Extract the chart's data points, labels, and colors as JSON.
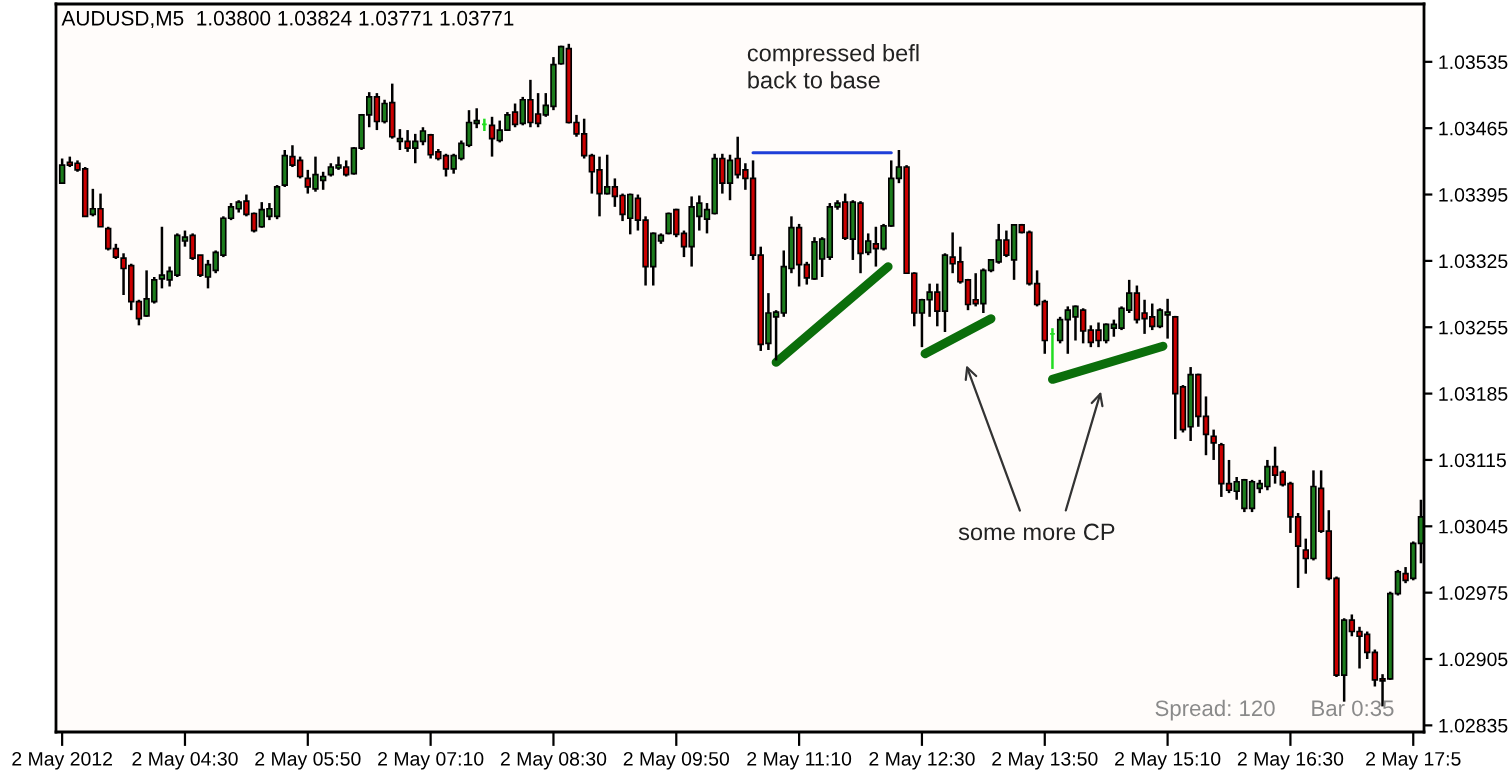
{
  "chart_data": {
    "type": "candlestick",
    "title": "AUDUSD,M5  1.03800 1.03824 1.03771 1.03771",
    "x": [
      "2012-05-02T03:10",
      "2012-05-02T03:15",
      "2012-05-02T03:20",
      "2012-05-02T03:25",
      "2012-05-02T03:30",
      "2012-05-02T03:35",
      "2012-05-02T03:40",
      "2012-05-02T03:45",
      "2012-05-02T03:50",
      "2012-05-02T03:55",
      "2012-05-02T04:00",
      "2012-05-02T04:05",
      "2012-05-02T04:10",
      "2012-05-02T04:15",
      "2012-05-02T04:20",
      "2012-05-02T04:25",
      "2012-05-02T04:30",
      "2012-05-02T04:35",
      "2012-05-02T04:40",
      "2012-05-02T04:45",
      "2012-05-02T04:50",
      "2012-05-02T04:55",
      "2012-05-02T05:00",
      "2012-05-02T05:05",
      "2012-05-02T05:10",
      "2012-05-02T05:15",
      "2012-05-02T05:20",
      "2012-05-02T05:25",
      "2012-05-02T05:30",
      "2012-05-02T05:35",
      "2012-05-02T05:40",
      "2012-05-02T05:45",
      "2012-05-02T05:50",
      "2012-05-02T05:55",
      "2012-05-02T06:00",
      "2012-05-02T06:05",
      "2012-05-02T06:10",
      "2012-05-02T06:15",
      "2012-05-02T06:20",
      "2012-05-02T06:25",
      "2012-05-02T06:30",
      "2012-05-02T06:35",
      "2012-05-02T06:40",
      "2012-05-02T06:45",
      "2012-05-02T06:50",
      "2012-05-02T06:55",
      "2012-05-02T07:00",
      "2012-05-02T07:05",
      "2012-05-02T07:10",
      "2012-05-02T07:15",
      "2012-05-02T07:20",
      "2012-05-02T07:25",
      "2012-05-02T07:30",
      "2012-05-02T07:35",
      "2012-05-02T07:40",
      "2012-05-02T07:45",
      "2012-05-02T07:50",
      "2012-05-02T07:55",
      "2012-05-02T08:00",
      "2012-05-02T08:05",
      "2012-05-02T08:10",
      "2012-05-02T08:15",
      "2012-05-02T08:20",
      "2012-05-02T08:25",
      "2012-05-02T08:30",
      "2012-05-02T08:35",
      "2012-05-02T08:40",
      "2012-05-02T08:45",
      "2012-05-02T08:50",
      "2012-05-02T08:55",
      "2012-05-02T09:00",
      "2012-05-02T09:05",
      "2012-05-02T09:10",
      "2012-05-02T09:15",
      "2012-05-02T09:20",
      "2012-05-02T09:25",
      "2012-05-02T09:30",
      "2012-05-02T09:35",
      "2012-05-02T09:40",
      "2012-05-02T09:45",
      "2012-05-02T09:50",
      "2012-05-02T09:55",
      "2012-05-02T10:00",
      "2012-05-02T10:05",
      "2012-05-02T10:10",
      "2012-05-02T10:15",
      "2012-05-02T10:20",
      "2012-05-02T10:25",
      "2012-05-02T10:30",
      "2012-05-02T10:35",
      "2012-05-02T10:40",
      "2012-05-02T10:45",
      "2012-05-02T10:50",
      "2012-05-02T10:55",
      "2012-05-02T11:00",
      "2012-05-02T11:05",
      "2012-05-02T11:10",
      "2012-05-02T11:15",
      "2012-05-02T11:20",
      "2012-05-02T11:25",
      "2012-05-02T11:30",
      "2012-05-02T11:35",
      "2012-05-02T11:40",
      "2012-05-02T11:45",
      "2012-05-02T11:50",
      "2012-05-02T11:55",
      "2012-05-02T12:00",
      "2012-05-02T12:05",
      "2012-05-02T12:10",
      "2012-05-02T12:15",
      "2012-05-02T12:20",
      "2012-05-02T12:25",
      "2012-05-02T12:30",
      "2012-05-02T12:35",
      "2012-05-02T12:40",
      "2012-05-02T12:45",
      "2012-05-02T12:50",
      "2012-05-02T12:55",
      "2012-05-02T13:00",
      "2012-05-02T13:05",
      "2012-05-02T13:10",
      "2012-05-02T13:15",
      "2012-05-02T13:20",
      "2012-05-02T13:25",
      "2012-05-02T13:30",
      "2012-05-02T13:35",
      "2012-05-02T13:40",
      "2012-05-02T13:45",
      "2012-05-02T13:50",
      "2012-05-02T13:55",
      "2012-05-02T14:00",
      "2012-05-02T14:05",
      "2012-05-02T14:10",
      "2012-05-02T14:15",
      "2012-05-02T14:20",
      "2012-05-02T14:25",
      "2012-05-02T14:30",
      "2012-05-02T14:35",
      "2012-05-02T14:40",
      "2012-05-02T14:45",
      "2012-05-02T14:50",
      "2012-05-02T14:55",
      "2012-05-02T15:00",
      "2012-05-02T15:05",
      "2012-05-02T15:10",
      "2012-05-02T15:15",
      "2012-05-02T15:20",
      "2012-05-02T15:25",
      "2012-05-02T15:30",
      "2012-05-02T15:35",
      "2012-05-02T15:40",
      "2012-05-02T15:45",
      "2012-05-02T15:50",
      "2012-05-02T15:55",
      "2012-05-02T16:00",
      "2012-05-02T16:05",
      "2012-05-02T16:10",
      "2012-05-02T16:15",
      "2012-05-02T16:20",
      "2012-05-02T16:25",
      "2012-05-02T16:30",
      "2012-05-02T16:35",
      "2012-05-02T16:40",
      "2012-05-02T16:45",
      "2012-05-02T16:50",
      "2012-05-02T16:55",
      "2012-05-02T17:00",
      "2012-05-02T17:05",
      "2012-05-02T17:10",
      "2012-05-02T17:15",
      "2012-05-02T17:20",
      "2012-05-02T17:25",
      "2012-05-02T17:30",
      "2012-05-02T17:35",
      "2012-05-02T17:40",
      "2012-05-02T17:45",
      "2012-05-02T17:50",
      "2012-05-02T17:55"
    ],
    "ohlc": [
      [
        1.03407,
        1.03433,
        1.03407,
        1.03426
      ],
      [
        1.03429,
        1.03435,
        1.03424,
        1.03426
      ],
      [
        1.03428,
        1.03431,
        1.03419,
        1.03421
      ],
      [
        1.03422,
        1.03424,
        1.03372,
        1.03372
      ],
      [
        1.03374,
        1.03401,
        1.03372,
        1.0338
      ],
      [
        1.0338,
        1.03396,
        1.03361,
        1.03361
      ],
      [
        1.03359,
        1.03361,
        1.03336,
        1.03338
      ],
      [
        1.03338,
        1.03343,
        1.03327,
        1.03329
      ],
      [
        1.03328,
        1.03333,
        1.03289,
        1.03317
      ],
      [
        1.0332,
        1.03322,
        1.03273,
        1.03282
      ],
      [
        1.03282,
        1.03284,
        1.03257,
        1.03264
      ],
      [
        1.03267,
        1.03315,
        1.03266,
        1.03285
      ],
      [
        1.03282,
        1.03308,
        1.0328,
        1.03305
      ],
      [
        1.03306,
        1.03361,
        1.03296,
        1.0331
      ],
      [
        1.03305,
        1.03319,
        1.03298,
        1.03314
      ],
      [
        1.0331,
        1.03354,
        1.03308,
        1.03352
      ],
      [
        1.03346,
        1.03357,
        1.0334,
        1.0335
      ],
      [
        1.03352,
        1.03354,
        1.03326,
        1.03328
      ],
      [
        1.03331,
        1.03331,
        1.03308,
        1.0331
      ],
      [
        1.03308,
        1.03326,
        1.03296,
        1.03321
      ],
      [
        1.03315,
        1.03336,
        1.03312,
        1.03334
      ],
      [
        1.03331,
        1.03372,
        1.03329,
        1.0337
      ],
      [
        1.0337,
        1.03386,
        1.03368,
        1.03382
      ],
      [
        1.0338,
        1.03389,
        1.03376,
        1.03387
      ],
      [
        1.03388,
        1.03395,
        1.03372,
        1.03374
      ],
      [
        1.03375,
        1.03376,
        1.03355,
        1.03357
      ],
      [
        1.03361,
        1.03387,
        1.0336,
        1.03379
      ],
      [
        1.03372,
        1.03386,
        1.03368,
        1.0338
      ],
      [
        1.03372,
        1.03405,
        1.03369,
        1.03403
      ],
      [
        1.03405,
        1.03442,
        1.03403,
        1.03436
      ],
      [
        1.03435,
        1.03447,
        1.03424,
        1.03426
      ],
      [
        1.03431,
        1.03435,
        1.03412,
        1.03414
      ],
      [
        1.03412,
        1.03421,
        1.03396,
        1.03403
      ],
      [
        1.03401,
        1.03435,
        1.03398,
        1.03416
      ],
      [
        1.0341,
        1.03419,
        1.034,
        1.03414
      ],
      [
        1.03416,
        1.03428,
        1.03414,
        1.03424
      ],
      [
        1.03423,
        1.03435,
        1.03421,
        1.03426
      ],
      [
        1.03424,
        1.03431,
        1.03414,
        1.03416
      ],
      [
        1.03417,
        1.03445,
        1.03416,
        1.03444
      ],
      [
        1.03444,
        1.0348,
        1.03442,
        1.03479
      ],
      [
        1.03479,
        1.03503,
        1.03466,
        1.03498
      ],
      [
        1.03498,
        1.03502,
        1.03463,
        1.03472
      ],
      [
        1.03472,
        1.03495,
        1.0347,
        1.03491
      ],
      [
        1.03492,
        1.03512,
        1.03454,
        1.03456
      ],
      [
        1.03451,
        1.03464,
        1.03442,
        1.03454
      ],
      [
        1.03451,
        1.03463,
        1.0344,
        1.03444
      ],
      [
        1.03444,
        1.03459,
        1.03428,
        1.03451
      ],
      [
        1.03451,
        1.03466,
        1.03447,
        1.03462
      ],
      [
        1.03458,
        1.03459,
        1.03433,
        1.03437
      ],
      [
        1.0344,
        1.03443,
        1.03431,
        1.03433
      ],
      [
        1.03436,
        1.03438,
        1.03414,
        1.03422
      ],
      [
        1.03422,
        1.03438,
        1.03417,
        1.03436
      ],
      [
        1.03433,
        1.03452,
        1.03431,
        1.03449
      ],
      [
        1.03447,
        1.03484,
        1.03445,
        1.03471
      ],
      [
        1.0347,
        1.03486,
        1.03465,
        1.03473
      ],
      [
        1.03469,
        1.03475,
        1.03462,
        1.03469
      ],
      [
        1.03468,
        1.03477,
        1.03435,
        1.03454
      ],
      [
        1.03452,
        1.03473,
        1.0345,
        1.03463
      ],
      [
        1.03463,
        1.03482,
        1.03463,
        1.03479
      ],
      [
        1.03482,
        1.03491,
        1.03466,
        1.03469
      ],
      [
        1.0347,
        1.03498,
        1.03468,
        1.03495
      ],
      [
        1.03495,
        1.03516,
        1.03466,
        1.03471
      ],
      [
        1.0348,
        1.03502,
        1.03466,
        1.0347
      ],
      [
        1.03479,
        1.03502,
        1.03477,
        1.03489
      ],
      [
        1.03488,
        1.0354,
        1.03484,
        1.03532
      ],
      [
        1.03533,
        1.03552,
        1.03532,
        1.03551
      ],
      [
        1.03549,
        1.03554,
        1.0347,
        1.03471
      ],
      [
        1.03471,
        1.03479,
        1.03456,
        1.03459
      ],
      [
        1.03459,
        1.03475,
        1.03433,
        1.03436
      ],
      [
        1.03436,
        1.03438,
        1.03396,
        1.03419
      ],
      [
        1.03421,
        1.03435,
        1.03372,
        1.03396
      ],
      [
        1.03396,
        1.03437,
        1.03395,
        1.03403
      ],
      [
        1.03403,
        1.03412,
        1.03382,
        1.03393
      ],
      [
        1.03394,
        1.03396,
        1.03367,
        1.03374
      ],
      [
        1.0337,
        1.03396,
        1.03353,
        1.03395
      ],
      [
        1.03391,
        1.03395,
        1.03357,
        1.03368
      ],
      [
        1.03368,
        1.03372,
        1.03299,
        1.03319
      ],
      [
        1.03319,
        1.03355,
        1.03299,
        1.03354
      ],
      [
        1.03346,
        1.03354,
        1.03343,
        1.03352
      ],
      [
        1.03354,
        1.03376,
        1.03353,
        1.03375
      ],
      [
        1.03379,
        1.0338,
        1.0335,
        1.03353
      ],
      [
        1.03354,
        1.03357,
        1.03329,
        1.0334
      ],
      [
        1.0334,
        1.03393,
        1.03319,
        1.03382
      ],
      [
        1.03372,
        1.03394,
        1.03357,
        1.03386
      ],
      [
        1.03369,
        1.03386,
        1.03354,
        1.03379
      ],
      [
        1.03375,
        1.03438,
        1.03374,
        1.03433
      ],
      [
        1.03433,
        1.03438,
        1.03396,
        1.03407
      ],
      [
        1.03407,
        1.03437,
        1.03389,
        1.03431
      ],
      [
        1.03433,
        1.03456,
        1.03412,
        1.03416
      ],
      [
        1.03421,
        1.03428,
        1.034,
        1.03412
      ],
      [
        1.03412,
        1.03431,
        1.03326,
        1.03331
      ],
      [
        1.03331,
        1.0334,
        1.0323,
        1.03237
      ],
      [
        1.03238,
        1.03291,
        1.03231,
        1.0327
      ],
      [
        1.03266,
        1.03273,
        1.0322,
        1.03271
      ],
      [
        1.0327,
        1.03336,
        1.03266,
        1.03319
      ],
      [
        1.03317,
        1.03372,
        1.03312,
        1.0336
      ],
      [
        1.0336,
        1.03364,
        1.03298,
        1.03321
      ],
      [
        1.03321,
        1.03324,
        1.033,
        1.03307
      ],
      [
        1.03306,
        1.0335,
        1.03305,
        1.03345
      ],
      [
        1.03327,
        1.0335,
        1.03308,
        1.03348
      ],
      [
        1.03329,
        1.03386,
        1.03326,
        1.03382
      ],
      [
        1.03382,
        1.03389,
        1.03379,
        1.03386
      ],
      [
        1.03387,
        1.03396,
        1.03347,
        1.03349
      ],
      [
        1.03348,
        1.03389,
        1.03326,
        1.03387
      ],
      [
        1.03386,
        1.03388,
        1.03312,
        1.03333
      ],
      [
        1.03334,
        1.03354,
        1.03331,
        1.03346
      ],
      [
        1.03343,
        1.03361,
        1.03319,
        1.03338
      ],
      [
        1.03338,
        1.03364,
        1.03336,
        1.03362
      ],
      [
        1.03362,
        1.03431,
        1.03361,
        1.03412
      ],
      [
        1.03412,
        1.03442,
        1.03407,
        1.03424
      ],
      [
        1.03424,
        1.03426,
        1.03312,
        1.03312
      ],
      [
        1.03312,
        1.03313,
        1.03256,
        1.0327
      ],
      [
        1.0327,
        1.03285,
        1.03234,
        1.03284
      ],
      [
        1.03284,
        1.03301,
        1.03266,
        1.03292
      ],
      [
        1.03292,
        1.03301,
        1.03256,
        1.03272
      ],
      [
        1.03272,
        1.03333,
        1.0325,
        1.03331
      ],
      [
        1.03329,
        1.03355,
        1.03312,
        1.03322
      ],
      [
        1.03324,
        1.0334,
        1.03301,
        1.03303
      ],
      [
        1.03305,
        1.03306,
        1.03273,
        1.03279
      ],
      [
        1.03284,
        1.03312,
        1.03277,
        1.0328
      ],
      [
        1.0328,
        1.03317,
        1.0327,
        1.03315
      ],
      [
        1.03315,
        1.03327,
        1.03313,
        1.03326
      ],
      [
        1.03324,
        1.03364,
        1.03322,
        1.03347
      ],
      [
        1.03347,
        1.03357,
        1.03329,
        1.03331
      ],
      [
        1.03326,
        1.03363,
        1.03305,
        1.03363
      ],
      [
        1.03363,
        1.03364,
        1.03354,
        1.03355
      ],
      [
        1.03355,
        1.03357,
        1.03299,
        1.03301
      ],
      [
        1.03301,
        1.03315,
        1.03277,
        1.03279
      ],
      [
        1.03282,
        1.03284,
        1.03227,
        1.03241
      ],
      [
        1.03248,
        1.03254,
        1.03211,
        1.03248
      ],
      [
        1.03241,
        1.03266,
        1.03238,
        1.03263
      ],
      [
        1.03263,
        1.03277,
        1.03227,
        1.03273
      ],
      [
        1.03266,
        1.03278,
        1.03241,
        1.03277
      ],
      [
        1.03273,
        1.03275,
        1.03238,
        1.03251
      ],
      [
        1.03252,
        1.03257,
        1.03234,
        1.03239
      ],
      [
        1.03252,
        1.0326,
        1.03234,
        1.03241
      ],
      [
        1.03241,
        1.03259,
        1.03238,
        1.03258
      ],
      [
        1.03254,
        1.03263,
        1.03245,
        1.03258
      ],
      [
        1.03254,
        1.03277,
        1.03252,
        1.03275
      ],
      [
        1.03273,
        1.03305,
        1.0327,
        1.03291
      ],
      [
        1.03291,
        1.03299,
        1.03259,
        1.03263
      ],
      [
        1.0327,
        1.03284,
        1.03248,
        1.03264
      ],
      [
        1.03266,
        1.0328,
        1.03252,
        1.03256
      ],
      [
        1.03256,
        1.03275,
        1.03254,
        1.03273
      ],
      [
        1.03268,
        1.03285,
        1.03243,
        1.03271
      ],
      [
        1.03266,
        1.03267,
        1.03137,
        1.03185
      ],
      [
        1.03192,
        1.03194,
        1.03144,
        1.03147
      ],
      [
        1.0315,
        1.03213,
        1.03135,
        1.03205
      ],
      [
        1.03205,
        1.03206,
        1.0315,
        1.03161
      ],
      [
        1.03161,
        1.03182,
        1.0312,
        1.03142
      ],
      [
        1.0314,
        1.03147,
        1.03115,
        1.03133
      ],
      [
        1.03131,
        1.03133,
        1.03076,
        1.0309
      ],
      [
        1.0309,
        1.03115,
        1.0308,
        1.03083
      ],
      [
        1.03082,
        1.03097,
        1.03073,
        1.03092
      ],
      [
        1.03064,
        1.03095,
        1.0306,
        1.03094
      ],
      [
        1.03064,
        1.03094,
        1.0306,
        1.03092
      ],
      [
        1.03085,
        1.03094,
        1.0308,
        1.0309
      ],
      [
        1.03087,
        1.03115,
        1.03083,
        1.03108
      ],
      [
        1.03108,
        1.03129,
        1.0309,
        1.03099
      ],
      [
        1.03102,
        1.03104,
        1.03087,
        1.03089
      ],
      [
        1.0309,
        1.03092,
        1.03038,
        1.03055
      ],
      [
        1.03055,
        1.03059,
        1.0298,
        1.03024
      ],
      [
        1.0302,
        1.03032,
        1.02995,
        1.03011
      ],
      [
        1.03011,
        1.03104,
        1.03009,
        1.03087
      ],
      [
        1.03085,
        1.03104,
        1.03038,
        1.0304
      ],
      [
        1.0304,
        1.03062,
        1.02988,
        1.0299
      ],
      [
        1.0299,
        1.02992,
        1.02886,
        1.02888
      ],
      [
        1.02888,
        1.02948,
        1.0286,
        1.02946
      ],
      [
        1.02946,
        1.02952,
        1.02929,
        1.02934
      ],
      [
        1.02934,
        1.02939,
        1.02895,
        1.02929
      ],
      [
        1.02931,
        1.02934,
        1.02905,
        1.02912
      ],
      [
        1.02912,
        1.02915,
        1.02876,
        1.02883
      ],
      [
        1.02884,
        1.02889,
        1.02855,
        1.02882
      ],
      [
        1.02884,
        1.02976,
        1.02883,
        1.02974
      ],
      [
        1.02974,
        1.02999,
        1.02972,
        1.02997
      ],
      [
        1.02995,
        1.03002,
        1.02985,
        1.02988
      ],
      [
        1.0299,
        1.03029,
        1.02988,
        1.03027
      ],
      [
        1.03027,
        1.03073,
        1.03006,
        1.03055
      ]
    ],
    "series": [
      {
        "type": "line",
        "color": "#1f3fd8",
        "x": [
          "2012-05-02T10:40",
          "2012-05-02T12:10"
        ],
        "values": [
          1.03439,
          1.03439
        ]
      },
      {
        "type": "line",
        "color": "#0b6e0b",
        "x": [
          "2012-05-02T10:55",
          "2012-05-02T12:08"
        ],
        "values": [
          1.03218,
          1.03319
        ]
      },
      {
        "type": "line",
        "color": "#0b6e0b",
        "x": [
          "2012-05-02T12:32",
          "2012-05-02T13:15"
        ],
        "values": [
          1.03227,
          1.03264
        ]
      },
      {
        "type": "line",
        "color": "#0b6e0b",
        "x": [
          "2012-05-02T13:55",
          "2012-05-02T15:07"
        ],
        "values": [
          1.032,
          1.03235
        ]
      }
    ],
    "annotations": [
      "compressed befl\nback to base",
      "some more CP",
      "Spread: 120",
      "Bar 0:35"
    ],
    "xlim": [
      "2012-05-02T03:06",
      "2012-05-02T17:57"
    ],
    "xticks": [
      {
        "value": "2012-05-02T03:10",
        "label": "2 May 2012"
      },
      {
        "value": "2012-05-02T04:30",
        "label": "2 May 04:30"
      },
      {
        "value": "2012-05-02T05:50",
        "label": "2 May 05:50"
      },
      {
        "value": "2012-05-02T07:10",
        "label": "2 May 07:10"
      },
      {
        "value": "2012-05-02T08:30",
        "label": "2 May 08:30"
      },
      {
        "value": "2012-05-02T09:50",
        "label": "2 May 09:50"
      },
      {
        "value": "2012-05-02T11:10",
        "label": "2 May 11:10"
      },
      {
        "value": "2012-05-02T12:30",
        "label": "2 May 12:30"
      },
      {
        "value": "2012-05-02T13:50",
        "label": "2 May 13:50"
      },
      {
        "value": "2012-05-02T15:10",
        "label": "2 May 15:10"
      },
      {
        "value": "2012-05-02T16:30",
        "label": "2 May 16:30"
      },
      {
        "value": "2012-05-02T17:50",
        "label": "2 May 17:5"
      }
    ],
    "ylim": [
      1.02828,
      1.03596
    ],
    "yticks": [
      1.02835,
      1.02905,
      1.02975,
      1.03045,
      1.03115,
      1.03185,
      1.03255,
      1.03325,
      1.03395,
      1.03465,
      1.03535
    ]
  }
}
